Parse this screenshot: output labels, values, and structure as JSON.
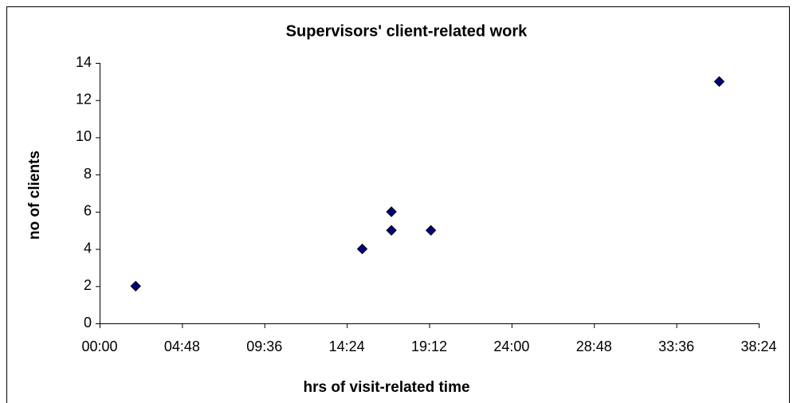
{
  "chart_data": {
    "type": "scatter",
    "title": "Supervisors' client-related work",
    "xlabel": "hrs of visit-related time",
    "ylabel": "no of clients",
    "series": [
      {
        "name": null,
        "color": "#000080",
        "x": [
          2.1,
          15.3,
          17,
          17,
          19.3,
          36.1
        ],
        "values": [
          2,
          4,
          6,
          5,
          5,
          13
        ]
      }
    ],
    "xlim": [
      0,
      38.4
    ],
    "xticks": [
      {
        "value": 0,
        "label": "00:00"
      },
      {
        "value": 4.8,
        "label": "04:48"
      },
      {
        "value": 9.6,
        "label": "09:36"
      },
      {
        "value": 14.4,
        "label": "14:24"
      },
      {
        "value": 19.2,
        "label": "19:12"
      },
      {
        "value": 24,
        "label": "24:00"
      },
      {
        "value": 28.8,
        "label": "28:48"
      },
      {
        "value": 33.6,
        "label": "33:36"
      },
      {
        "value": 38.4,
        "label": "38:24"
      }
    ],
    "ylim": [
      0,
      14
    ],
    "yticks": [
      0,
      2,
      4,
      6,
      8,
      10,
      12,
      14
    ],
    "grid": false
  }
}
